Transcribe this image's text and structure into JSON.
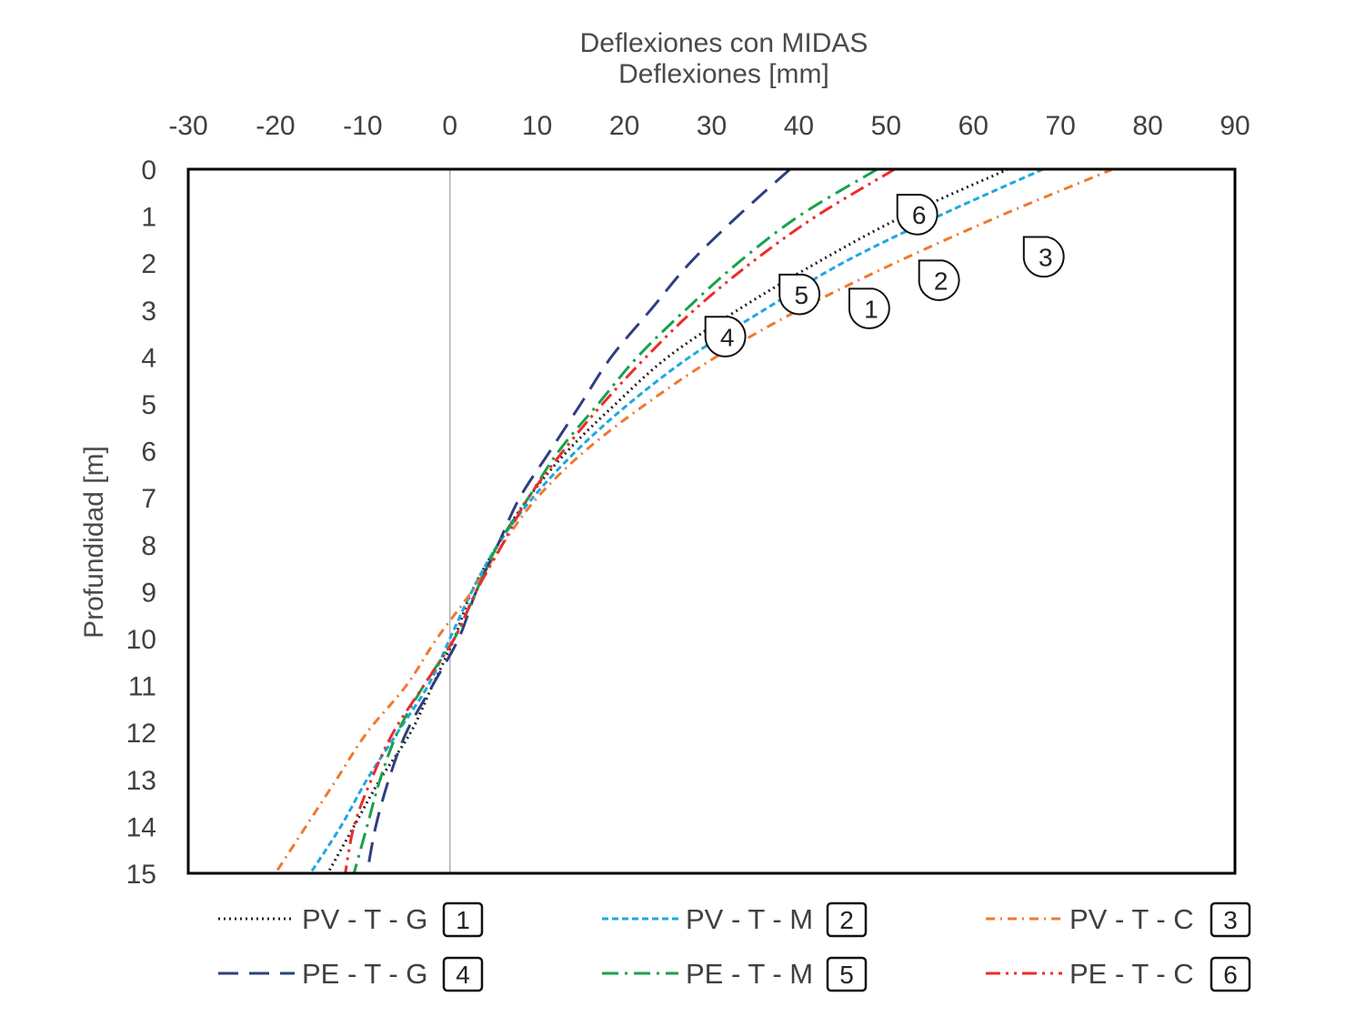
{
  "chart_data": {
    "type": "line",
    "title": "Deflexiones con MIDAS",
    "xlabel": "Deflexiones [mm]",
    "ylabel": "Profundidad [m]",
    "x_axis_position": "top",
    "y_axis_inverted": true,
    "xlim": [
      -30,
      90
    ],
    "ylim": [
      0,
      15
    ],
    "x_ticks": [
      "-30",
      "-20",
      "-10",
      "0",
      "10",
      "20",
      "30",
      "40",
      "50",
      "60",
      "70",
      "80",
      "90"
    ],
    "y_ticks": [
      "0",
      "1",
      "2",
      "3",
      "4",
      "5",
      "6",
      "7",
      "8",
      "9",
      "10",
      "11",
      "12",
      "13",
      "14",
      "15"
    ],
    "grid": false,
    "legend_position": "bottom",
    "depth": [
      0,
      1,
      2,
      3,
      4,
      5,
      6,
      7,
      8,
      9,
      10,
      11,
      12,
      13,
      14,
      15
    ],
    "series": [
      {
        "name": "PV - T - G",
        "label": "1",
        "color": "#222222",
        "dash": "dot",
        "deflection": [
          64,
          52,
          42,
          33,
          25,
          19,
          13.5,
          9,
          5.5,
          2.5,
          0.5,
          -2,
          -4.5,
          -8,
          -11,
          -14
        ]
      },
      {
        "name": "PV - T - M",
        "label": "2",
        "color": "#1ea8e0",
        "dash": "short-dash",
        "deflection": [
          68,
          56,
          45,
          36,
          27.5,
          20.5,
          14.5,
          9.5,
          5.5,
          2.5,
          0,
          -2.5,
          -6,
          -9.5,
          -12.5,
          -16
        ]
      },
      {
        "name": "PV - T - C",
        "label": "3",
        "color": "#f07830",
        "dash": "dash-dot",
        "deflection": [
          76,
          63,
          51,
          40,
          30.5,
          22.5,
          15.5,
          10,
          6,
          2.5,
          -1.5,
          -5,
          -9.5,
          -13,
          -16.5,
          -20
        ]
      },
      {
        "name": "PE - T - G",
        "label": "4",
        "color": "#2e3f7f",
        "dash": "long-dash",
        "deflection": [
          39,
          33,
          27.5,
          23,
          18.5,
          15,
          11.5,
          8,
          5.5,
          3,
          1,
          -2,
          -5,
          -7,
          -8.5,
          -9.5
        ]
      },
      {
        "name": "PE - T - M",
        "label": "5",
        "color": "#17a24a",
        "dash": "long-dash-dot",
        "deflection": [
          49,
          40,
          33,
          27,
          21.5,
          17,
          12.5,
          9,
          5.5,
          3,
          0.5,
          -3,
          -6,
          -8,
          -9.5,
          -11
        ]
      },
      {
        "name": "PE - T - C",
        "label": "6",
        "color": "#ee2b2b",
        "dash": "long-dash-dot-dot",
        "deflection": [
          51,
          42,
          34.5,
          28,
          22.5,
          17.5,
          13,
          9,
          6,
          3,
          0.5,
          -3,
          -6.5,
          -9,
          -11,
          -12
        ]
      }
    ],
    "callouts": [
      {
        "label": "1",
        "deflection": 46,
        "depth": 2.7
      },
      {
        "label": "2",
        "deflection": 54,
        "depth": 2.1
      },
      {
        "label": "3",
        "deflection": 66,
        "depth": 1.6
      },
      {
        "label": "4",
        "deflection": 29.5,
        "depth": 3.3
      },
      {
        "label": "5",
        "deflection": 38,
        "depth": 2.4
      },
      {
        "label": "6",
        "deflection": 51.5,
        "depth": 0.7
      }
    ]
  }
}
